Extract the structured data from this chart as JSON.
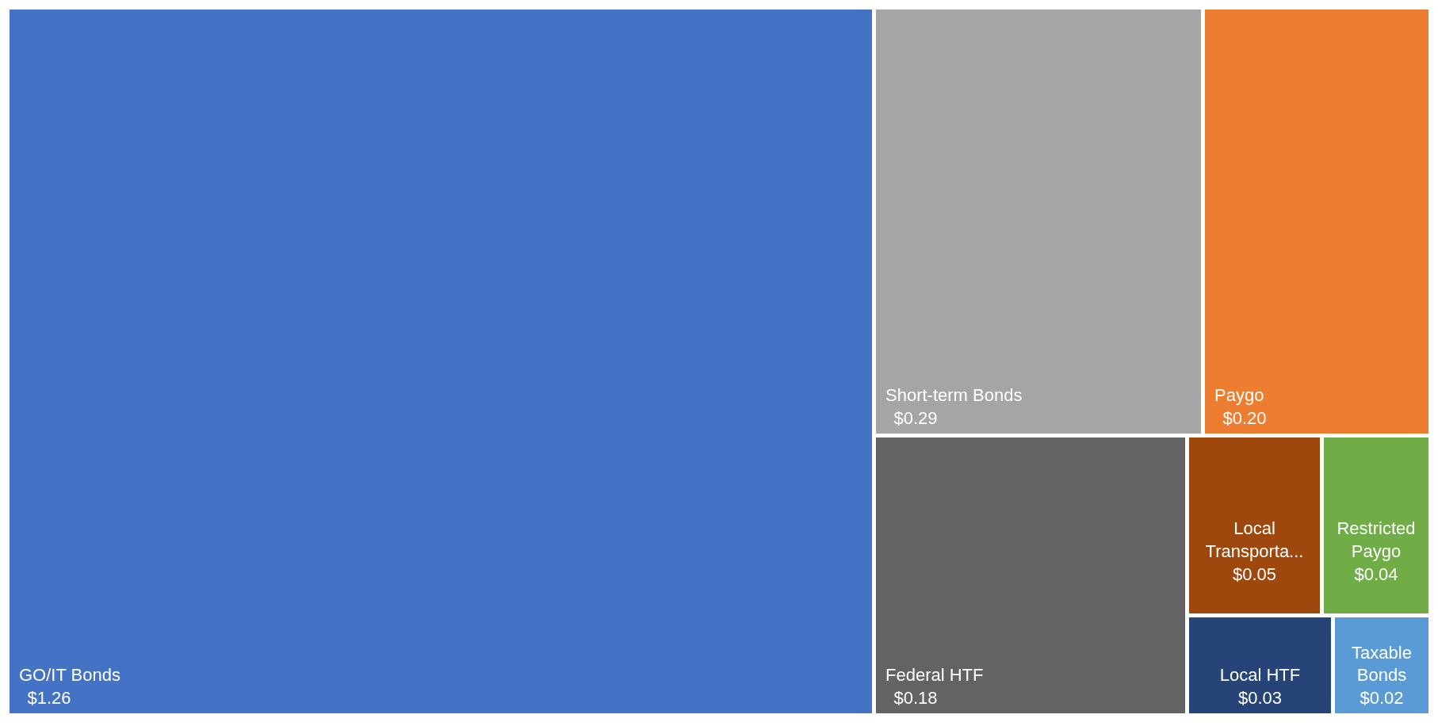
{
  "chart_data": {
    "type": "other",
    "categories": [
      "GO/IT Bonds",
      "Short-term Bonds",
      "Paygo",
      "Federal HTF",
      "Local Transporta...",
      "Restricted Paygo",
      "Local HTF",
      "Taxable Bonds"
    ],
    "values": [
      1.26,
      0.29,
      0.2,
      0.18,
      0.05,
      0.04,
      0.03,
      0.02
    ],
    "value_labels": [
      "$1.26",
      "$0.29",
      "$0.20",
      "$0.18",
      "$0.05",
      "$0.04",
      "$0.03",
      "$0.02"
    ],
    "colors": [
      "#4472c4",
      "#a5a5a5",
      "#ed7d31",
      "#636363",
      "#9e480e",
      "#70ad47",
      "#264478",
      "#5b9bd5"
    ]
  }
}
